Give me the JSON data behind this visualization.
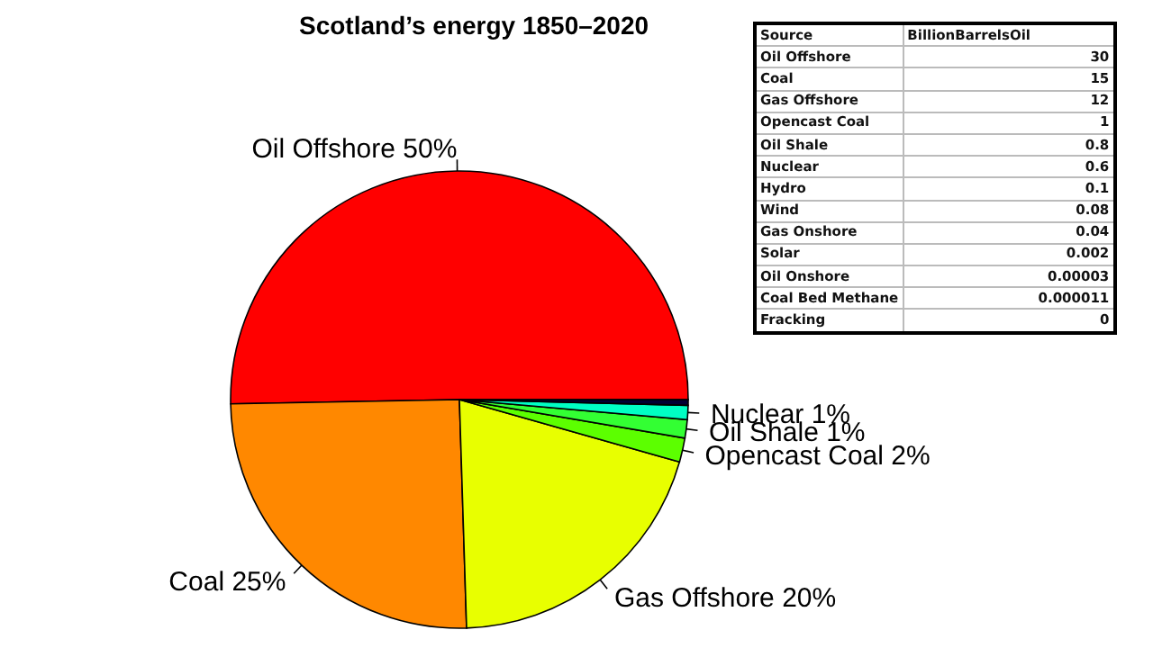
{
  "chart_data": [
    {
      "type": "pie",
      "title": "Scotland’s energy 1850–2020",
      "categories": [
        "Oil Offshore",
        "Coal",
        "Gas Offshore",
        "Opencast Coal",
        "Oil Shale",
        "Nuclear",
        null
      ],
      "values": [
        50.3,
        25.2,
        20.1,
        1.7,
        1.3,
        1.0,
        0.4
      ],
      "colors": [
        "#ff0000",
        "#ff8800",
        "#e8ff00",
        "#5cff00",
        "#33ff33",
        "#00ffc4",
        "#000033"
      ],
      "value_labels": [
        "50%",
        "25%",
        "20%",
        "2%",
        "1%",
        "1%",
        null
      ]
    },
    {
      "type": "other",
      "categories": [
        "Oil Offshore",
        "Coal",
        "Gas Offshore",
        "Opencast Coal",
        "Oil Shale",
        "Nuclear",
        "Hydro",
        "Wind",
        "Gas Onshore",
        "Solar",
        "Oil Onshore",
        "Coal Bed Methane",
        "Fracking"
      ],
      "value_labels": [
        "30",
        "15",
        "12",
        "1",
        "0.8",
        "0.6",
        "0.1",
        "0.08",
        "0.04",
        "0.002",
        "0.00003",
        "0.000011",
        "0"
      ],
      "annotations": [
        "Source",
        "BillionBarrelsOil"
      ]
    }
  ]
}
